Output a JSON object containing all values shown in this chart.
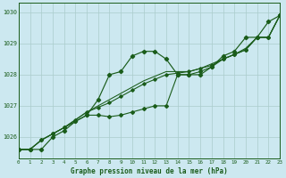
{
  "xlabel": "Graphe pression niveau de la mer (hPa)",
  "bg_color": "#cce8f0",
  "grid_color": "#aacccc",
  "line_color": "#1a5c1a",
  "xlim": [
    0,
    23
  ],
  "ylim": [
    1025.3,
    1030.3
  ],
  "yticks": [
    1026,
    1027,
    1028,
    1029,
    1030
  ],
  "xticks": [
    0,
    1,
    2,
    3,
    4,
    5,
    6,
    7,
    8,
    9,
    10,
    11,
    12,
    13,
    14,
    15,
    16,
    17,
    18,
    19,
    20,
    21,
    22,
    23
  ],
  "series1": [
    1025.6,
    1025.6,
    1025.6,
    1026.0,
    1026.2,
    1026.5,
    1026.7,
    1027.2,
    1028.0,
    1028.1,
    1028.6,
    1028.75,
    1028.75,
    1028.5,
    1028.0,
    1028.0,
    1028.0,
    1028.25,
    1028.6,
    1028.75,
    1029.2,
    1029.2,
    1029.7,
    1029.9
  ],
  "series2": [
    1025.6,
    1025.6,
    1025.9,
    1026.1,
    1026.3,
    1026.5,
    1026.7,
    1026.7,
    1026.65,
    1026.7,
    1026.8,
    1026.9,
    1027.0,
    1027.0,
    1028.0,
    1028.0,
    1028.1,
    1028.25,
    1028.5,
    1028.65,
    1028.8,
    1029.2,
    1029.2,
    1029.9
  ],
  "series3": [
    1025.6,
    1025.6,
    1025.9,
    1026.1,
    1026.3,
    1026.55,
    1026.8,
    1026.95,
    1027.1,
    1027.3,
    1027.5,
    1027.7,
    1027.85,
    1028.0,
    1028.05,
    1028.1,
    1028.2,
    1028.3,
    1028.5,
    1028.65,
    1028.8,
    1029.2,
    1029.2,
    1029.9
  ],
  "series4": [
    1025.6,
    1025.6,
    1025.9,
    1026.1,
    1026.3,
    1026.55,
    1026.8,
    1027.0,
    1027.2,
    1027.4,
    1027.6,
    1027.8,
    1027.95,
    1028.1,
    1028.1,
    1028.1,
    1028.2,
    1028.35,
    1028.5,
    1028.65,
    1028.85,
    1029.2,
    1029.2,
    1029.9
  ]
}
